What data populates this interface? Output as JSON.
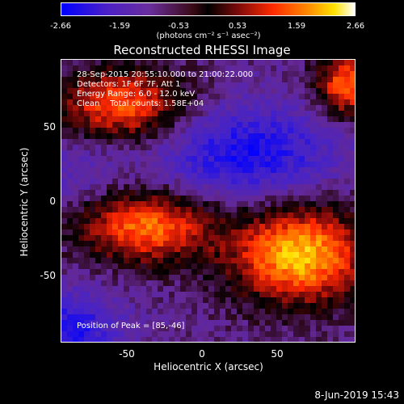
{
  "colorbar": {
    "ticks": [
      "-2.66",
      "-1.59",
      "-0.53",
      "0.53",
      "1.59",
      "2.66"
    ],
    "unit_label": "(photons cm⁻² s⁻¹ asec⁻²)"
  },
  "image": {
    "title": "Reconstructed RHESSI Image",
    "info_lines": [
      "28-Sep-2015 20:55:10.000 to 21:00:22.000",
      "Detectors: 1F 6F 7F, Att 1",
      "Energy Range: 6.0 - 12.0 keV",
      "Clean    Total counts: 1.58E+04"
    ],
    "peak_label": "Position of Peak = [85,-46]",
    "x_axis_label": "Heliocentric X (arcsec)",
    "y_axis_label": "Heliocentric Y (arcsec)",
    "x_ticks": [
      "-50",
      "0",
      "50"
    ],
    "y_ticks": [
      "50",
      "0",
      "-50"
    ],
    "x_range": [
      -95,
      95
    ],
    "y_range": [
      -95,
      95
    ]
  },
  "timestamp": "8-Jun-2019 15:43",
  "colors": {
    "background": "#000000",
    "foreground": "#ffffff"
  }
}
